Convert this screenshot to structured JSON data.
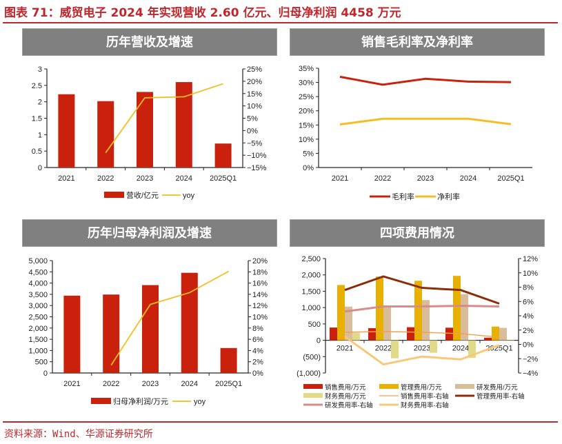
{
  "figure": {
    "title": "图表 71：威贸电子 2024 年实现营收 2.60 亿元、归母净利润 4458 万元",
    "source": "资料来源：Wind、华源证券研究所"
  },
  "panels": {
    "p1_title": "历年营收及增速",
    "p2_title": "销售毛利率及净利率",
    "p3_title": "历年归母净利润及增速",
    "p4_title": "四项费用情况"
  },
  "colors": {
    "red": "#c9210c",
    "yellow": "#f5bd1f",
    "accent": "#c0272d",
    "header_bg": "#808080",
    "admin": "#e8b000",
    "rd": "#d9bc99",
    "fin": "#e2da88",
    "admin_rate": "#8b2d0a",
    "rd_rate": "#d98a8a",
    "sales_rate": "#f5a050",
    "fin_rate": "#f8c878"
  },
  "chart_data": [
    {
      "type": "bar+line",
      "title": "历年营收及增速",
      "categories": [
        "2021",
        "2022",
        "2023",
        "2024",
        "2025Q1"
      ],
      "series": [
        {
          "name": "营收/亿元",
          "type": "bar",
          "axis": "left",
          "values": [
            2.23,
            2.02,
            2.3,
            2.6,
            0.73
          ]
        },
        {
          "name": "yoy",
          "type": "line",
          "axis": "right",
          "values": [
            null,
            -9.0,
            13.3,
            13.7,
            19.0
          ]
        }
      ],
      "ylim_left": [
        0,
        3
      ],
      "yticks_left": [
        "0",
        "0.5",
        "1",
        "1.5",
        "2",
        "2.5",
        "3"
      ],
      "ylim_right": [
        -15,
        25
      ],
      "yticks_right": [
        "-15%",
        "-10%",
        "-5%",
        "0%",
        "5%",
        "10%",
        "15%",
        "20%",
        "25%"
      ],
      "legend": [
        "营收/亿元",
        "yoy"
      ]
    },
    {
      "type": "line",
      "title": "销售毛利率及净利率",
      "categories": [
        "2021",
        "2022",
        "2023",
        "2024",
        "2025Q1"
      ],
      "series": [
        {
          "name": "毛利率",
          "values": [
            32.0,
            29.2,
            31.3,
            30.3,
            30.1
          ]
        },
        {
          "name": "净利率",
          "values": [
            15.2,
            17.2,
            17.2,
            17.2,
            15.3
          ]
        }
      ],
      "ylim": [
        0,
        35
      ],
      "yticks": [
        "0%",
        "5%",
        "10%",
        "15%",
        "20%",
        "25%",
        "30%",
        "35%"
      ],
      "legend": [
        "毛利率",
        "净利率"
      ]
    },
    {
      "type": "bar+line",
      "title": "历年归母净利润及增速",
      "categories": [
        "2021",
        "2022",
        "2023",
        "2024",
        "2025Q1"
      ],
      "series": [
        {
          "name": "归母净利润/万元",
          "type": "bar",
          "axis": "left",
          "values": [
            3440,
            3490,
            3910,
            4458,
            1110
          ]
        },
        {
          "name": "yoy",
          "type": "line",
          "axis": "right",
          "values": [
            null,
            1.4,
            12.2,
            14.3,
            18.1
          ]
        }
      ],
      "ylim_left": [
        0,
        5000
      ],
      "yticks_left": [
        "0",
        "500",
        "1,000",
        "1,500",
        "2,000",
        "2,500",
        "3,000",
        "3,500",
        "4,000",
        "4,500",
        "5,000"
      ],
      "ylim_right": [
        0,
        20
      ],
      "yticks_right": [
        "0%",
        "2%",
        "4%",
        "6%",
        "8%",
        "10%",
        "12%",
        "14%",
        "16%",
        "18%",
        "20%"
      ],
      "legend": [
        "归母净利润/万元",
        "yoy"
      ]
    },
    {
      "type": "bar+line",
      "title": "四项费用情况",
      "categories": [
        "2021",
        "2022",
        "2023",
        "2024",
        "2025Q1"
      ],
      "series": [
        {
          "name": "销售费用/万元",
          "type": "bar",
          "axis": "left",
          "values": [
            390,
            370,
            400,
            385,
            80
          ]
        },
        {
          "name": "管理费用/万元",
          "type": "bar",
          "axis": "left",
          "values": [
            1690,
            1950,
            1820,
            1970,
            420
          ]
        },
        {
          "name": "研发费用/万元",
          "type": "bar",
          "axis": "left",
          "values": [
            1030,
            1060,
            1230,
            1410,
            380
          ]
        },
        {
          "name": "财务费用/万元",
          "type": "bar",
          "axis": "left",
          "values": [
            230,
            -550,
            -380,
            -540,
            -20
          ]
        },
        {
          "name": "销售费用率-右轴",
          "type": "line",
          "axis": "right",
          "values": [
            1.7,
            1.8,
            1.7,
            1.5,
            1.0
          ]
        },
        {
          "name": "管理费用率-右轴",
          "type": "line",
          "axis": "right",
          "values": [
            7.6,
            9.5,
            7.9,
            7.6,
            5.7
          ]
        },
        {
          "name": "研发费用率-右轴",
          "type": "line",
          "axis": "right",
          "values": [
            4.6,
            5.3,
            5.3,
            5.4,
            5.3
          ]
        },
        {
          "name": "财务费用率-右轴",
          "type": "line",
          "axis": "right",
          "values": [
            1.1,
            -2.8,
            -1.7,
            -2.1,
            -0.1
          ]
        }
      ],
      "ylim_left": [
        -1000,
        2500
      ],
      "yticks_left": [
        "(1,000)",
        "(500)",
        "0",
        "500",
        "1,000",
        "1,500",
        "2,000",
        "2,500"
      ],
      "ylim_right": [
        -4,
        12
      ],
      "yticks_right": [
        "-4%",
        "-2%",
        "0%",
        "2%",
        "4%",
        "6%",
        "8%",
        "10%",
        "12%"
      ],
      "legend": [
        "销售费用/万元",
        "管理费用/万元",
        "研发费用/万元",
        "财务费用/万元",
        "销售费用率-右轴",
        "管理费用率-右轴",
        "研发费用率-右轴",
        "财务费用率-右轴"
      ]
    }
  ]
}
